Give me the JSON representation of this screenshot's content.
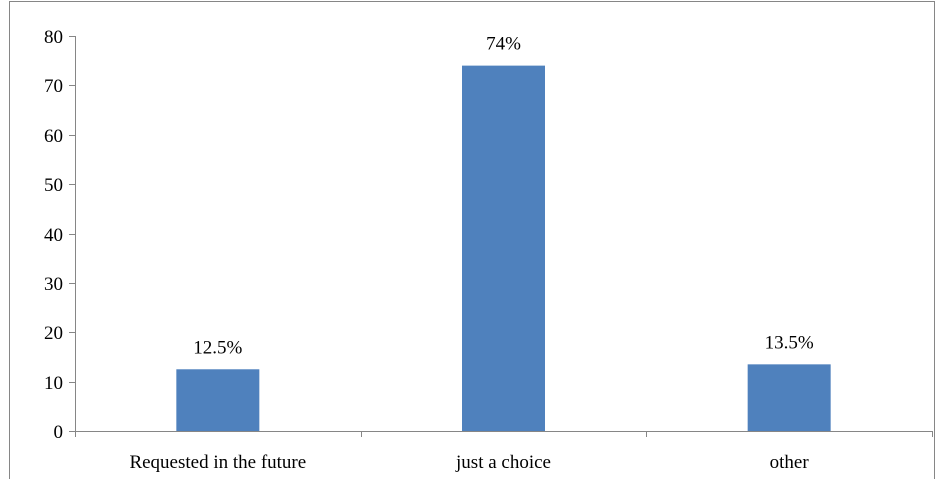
{
  "chart_data": {
    "type": "bar",
    "title": "",
    "xlabel": "",
    "ylabel": "",
    "categories": [
      "Requested in the future",
      "just a choice",
      "other"
    ],
    "values": [
      12.5,
      74,
      13.5
    ],
    "data_labels": [
      "12.5%",
      "74%",
      "13.5%"
    ],
    "ylim": [
      0,
      80
    ],
    "yticks": [
      0,
      10,
      20,
      30,
      40,
      50,
      60,
      70,
      80
    ],
    "ytick_labels": [
      "0",
      "10",
      "20",
      "30",
      "40",
      "50",
      "60",
      "70",
      "80"
    ],
    "grid": false,
    "legend": "none",
    "colors": {
      "bar": "#4f81bd",
      "axis": "#868686",
      "border": "#868686"
    }
  }
}
